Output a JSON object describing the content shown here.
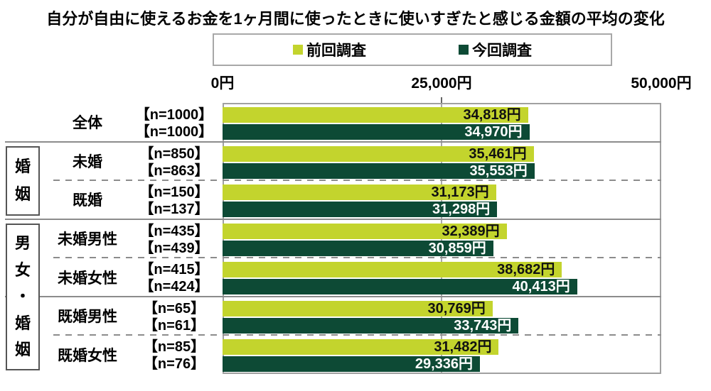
{
  "title": "自分が自由に使えるお金を1ヶ月間に使ったときに使いすぎたと感じる金額の平均の変化",
  "legend": {
    "previous": "前回調査",
    "current": "今回調査"
  },
  "colors": {
    "previous": "#c3d42d",
    "current": "#0d4a35",
    "grid": "#a8a8a8"
  },
  "chart_data": {
    "type": "bar",
    "orientation": "horizontal",
    "title": "自分が自由に使えるお金を1ヶ月間に使ったときに使いすぎたと感じる金額の平均の変化",
    "x_axis": {
      "ticks": [
        "0円",
        "25,000円",
        "50,000円"
      ],
      "tick_values": [
        0,
        25000,
        50000
      ],
      "min": 0,
      "max": 50000,
      "unit": "円"
    },
    "legend_position": "top",
    "grid": "vertical-midline-only",
    "series_names": [
      "前回調査",
      "今回調査"
    ],
    "groups": [
      {
        "label": "婚姻",
        "row_start": 1,
        "row_end": 2
      },
      {
        "label": "男女・婚姻",
        "row_start": 3,
        "row_end": 6
      }
    ],
    "rows": [
      {
        "label": "全体",
        "separator_above": null,
        "previous": {
          "n_label": "【n=1000】",
          "value": 34818,
          "value_label": "34,818円"
        },
        "current": {
          "n_label": "【n=1000】",
          "value": 34970,
          "value_label": "34,970円"
        }
      },
      {
        "label": "未婚",
        "separator_above": "solid",
        "previous": {
          "n_label": "【n=850】",
          "value": 35461,
          "value_label": "35,461円"
        },
        "current": {
          "n_label": "【n=863】",
          "value": 35553,
          "value_label": "35,553円"
        }
      },
      {
        "label": "既婚",
        "separator_above": "dashed",
        "previous": {
          "n_label": "【n=150】",
          "value": 31173,
          "value_label": "31,173円"
        },
        "current": {
          "n_label": "【n=137】",
          "value": 31298,
          "value_label": "31,298円"
        }
      },
      {
        "label": "未婚男性",
        "separator_above": "solid",
        "previous": {
          "n_label": "【n=435】",
          "value": 32389,
          "value_label": "32,389円"
        },
        "current": {
          "n_label": "【n=439】",
          "value": 30859,
          "value_label": "30,859円"
        }
      },
      {
        "label": "未婚女性",
        "separator_above": "dashed",
        "previous": {
          "n_label": "【n=415】",
          "value": 38682,
          "value_label": "38,682円"
        },
        "current": {
          "n_label": "【n=424】",
          "value": 40413,
          "value_label": "40,413円"
        }
      },
      {
        "label": "既婚男性",
        "separator_above": "solid",
        "previous": {
          "n_label": "【n=65】",
          "value": 30769,
          "value_label": "30,769円"
        },
        "current": {
          "n_label": "【n=61】",
          "value": 33743,
          "value_label": "33,743円"
        }
      },
      {
        "label": "既婚女性",
        "separator_above": "dashed",
        "previous": {
          "n_label": "【n=85】",
          "value": 31482,
          "value_label": "31,482円"
        },
        "current": {
          "n_label": "【n=76】",
          "value": 29336,
          "value_label": "29,336円"
        }
      }
    ]
  }
}
